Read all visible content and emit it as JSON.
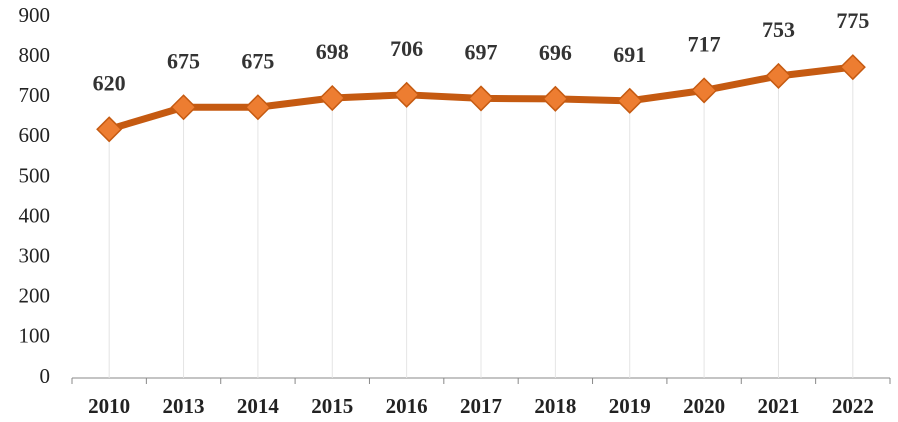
{
  "chart_data": {
    "type": "line",
    "categories": [
      "2010",
      "2013",
      "2014",
      "2015",
      "2016",
      "2017",
      "2018",
      "2019",
      "2020",
      "2021",
      "2022"
    ],
    "values": [
      620,
      675,
      675,
      698,
      706,
      697,
      696,
      691,
      717,
      753,
      775
    ],
    "color": "#c55a11",
    "marker_color": "#ed7d31",
    "ylim": [
      0,
      900
    ],
    "yticks": [
      0,
      100,
      200,
      300,
      400,
      500,
      600,
      700,
      800,
      900
    ],
    "grid": false
  }
}
